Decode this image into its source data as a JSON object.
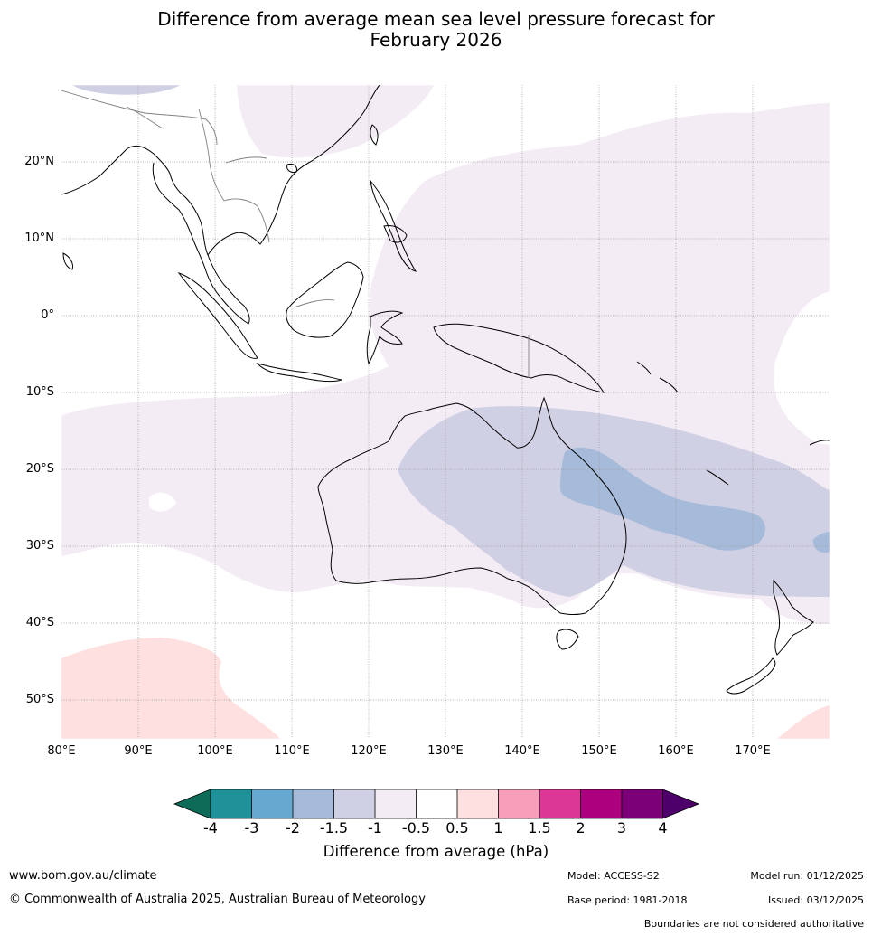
{
  "title_line1": "Difference from average mean sea level pressure forecast for",
  "title_line2": "February 2026",
  "map": {
    "lat_labels": [
      "20°N",
      "10°N",
      "0°",
      "10°S",
      "20°S",
      "30°S",
      "40°S",
      "50°S"
    ],
    "lon_labels": [
      "80°E",
      "90°E",
      "100°E",
      "110°E",
      "120°E",
      "130°E",
      "140°E",
      "150°E",
      "160°E",
      "170°E"
    ],
    "extent": {
      "lon_min": 80,
      "lon_max": 180,
      "lat_min": -55,
      "lat_max": 30
    },
    "colors": {
      "ocean": "#ffffff",
      "band_m1_m05": "#f4ecf5",
      "band_m15_m1": "#d0d0e5",
      "band_m2_m15": "#a6bad9",
      "band_05_1": "#fde0df",
      "coast": "#000000",
      "border": "#808080"
    }
  },
  "colorbar": {
    "ticks": [
      "-4",
      "-3",
      "-2",
      "-1.5",
      "-1",
      "-0.5",
      "0.5",
      "1",
      "1.5",
      "2",
      "3",
      "4"
    ],
    "colors": [
      "#0d6b57",
      "#1e9199",
      "#67a8d1",
      "#a6bad9",
      "#d0d0e5",
      "#f4ecf5",
      "#ffffff",
      "#fde0df",
      "#f79eba",
      "#dc3796",
      "#ac007f",
      "#7b0077",
      "#4d006a"
    ],
    "title": "Difference from average (hPa)"
  },
  "footer": {
    "website": "www.bom.gov.au/climate",
    "copyright": "© Commonwealth of Australia 2025, Australian Bureau of Meteorology",
    "model": "Model: ACCESS-S2",
    "base_period": "Base period: 1981-2018",
    "model_run": "Model run: 01/12/2025",
    "issued": "Issued: 03/12/2025",
    "disclaimer": "Boundaries are not considered authoritative"
  }
}
